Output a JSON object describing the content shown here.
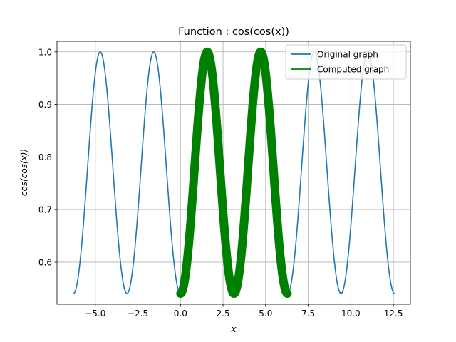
{
  "chart_data": {
    "type": "line",
    "title": "Function : cos(cos(x))",
    "xlabel": "x",
    "ylabel": "cos(cos(x))",
    "xlim": [
      -7.25,
      13.5
    ],
    "ylim": [
      0.52,
      1.02
    ],
    "x_ticks": [
      -5.0,
      -2.5,
      0.0,
      2.5,
      5.0,
      7.5,
      10.0,
      12.5
    ],
    "x_tick_labels": [
      "−5.0",
      "−2.5",
      "0.0",
      "2.5",
      "5.0",
      "7.5",
      "10.0",
      "12.5"
    ],
    "y_ticks": [
      0.6,
      0.7,
      0.8,
      0.9,
      1.0
    ],
    "y_tick_labels": [
      "0.6",
      "0.7",
      "0.8",
      "0.9",
      "1.0"
    ],
    "grid": true,
    "legend_position": "top-right",
    "series": [
      {
        "name": "Original graph",
        "style": "line",
        "color": "#1f77b4",
        "function": "cos(cos(x))",
        "x_range": [
          -6.283,
          12.566
        ]
      },
      {
        "name": "Computed graph",
        "style": "line-with-markers",
        "color": "#008000",
        "function": "cos(cos(x))",
        "x_range": [
          0.0,
          6.283
        ]
      }
    ]
  }
}
